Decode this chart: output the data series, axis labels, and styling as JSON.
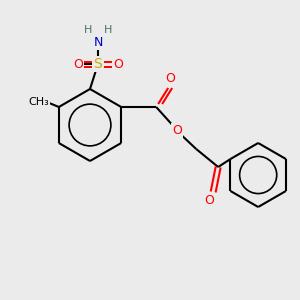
{
  "bg_color": "#ebebeb",
  "bond_color": "#000000",
  "atom_colors": {
    "O": "#ff0000",
    "N": "#0000cc",
    "S": "#ccaa00",
    "H": "#507070",
    "C": "#000000"
  },
  "figsize": [
    3.0,
    3.0
  ],
  "dpi": 100
}
